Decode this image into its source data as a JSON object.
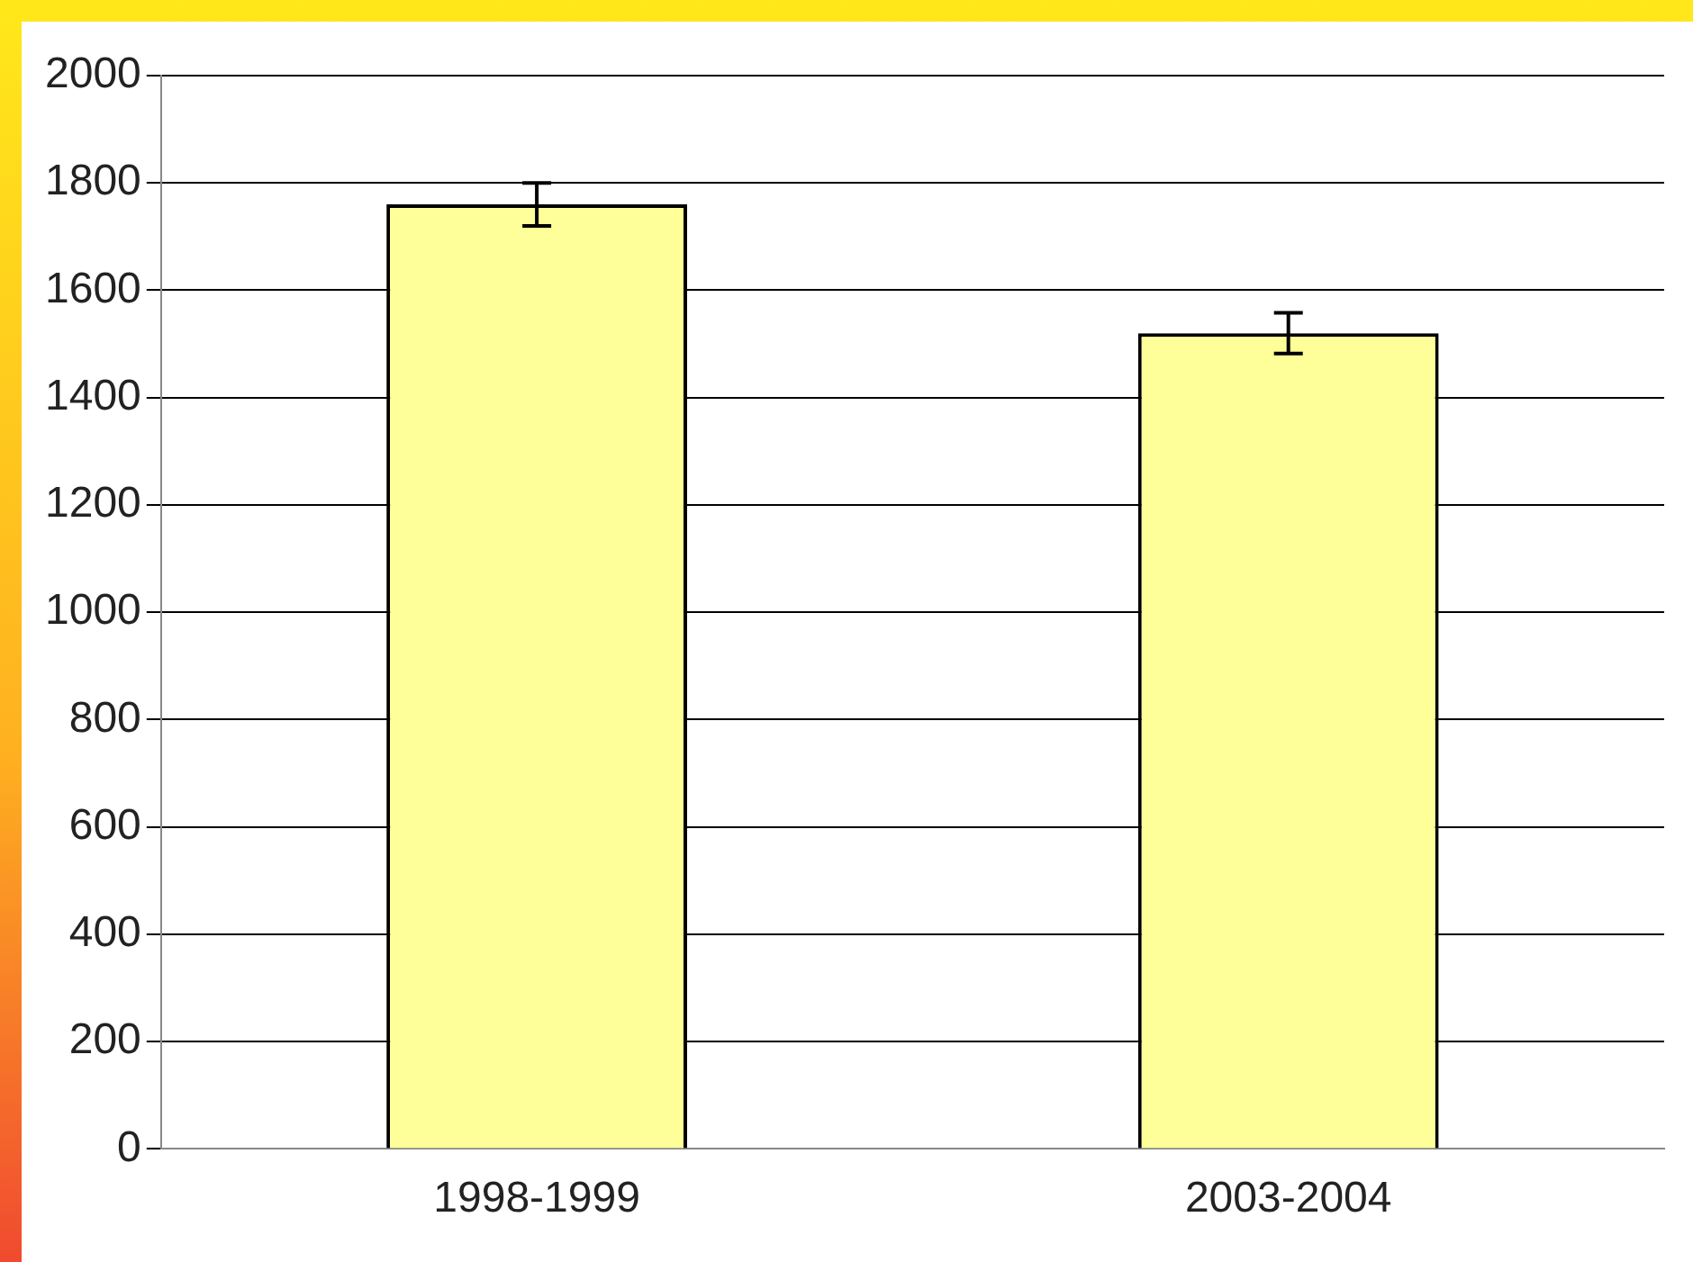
{
  "chart_data": {
    "type": "bar",
    "categories": [
      "1998-1999",
      "2003-2004"
    ],
    "values": [
      1760,
      1520
    ],
    "errors": [
      40,
      38
    ],
    "color": "#ffff99",
    "ylim": [
      0,
      2000
    ],
    "yticks": [
      0,
      200,
      400,
      600,
      800,
      1000,
      1200,
      1400,
      1600,
      1800,
      2000
    ],
    "grid": "y",
    "legend": false
  }
}
